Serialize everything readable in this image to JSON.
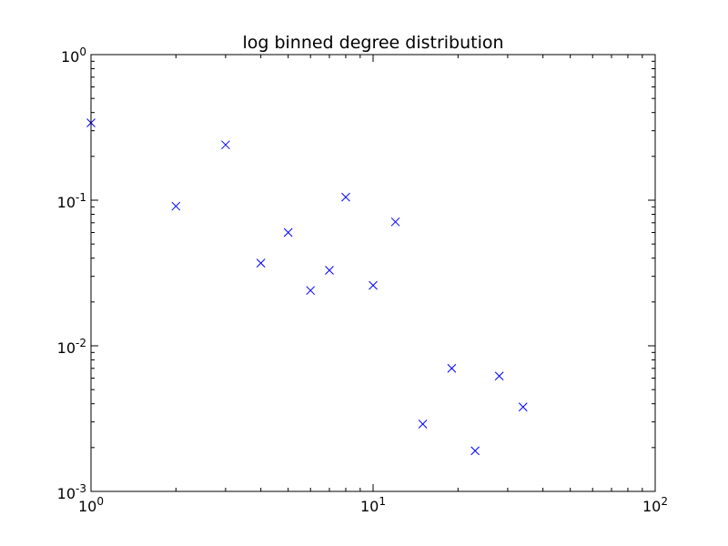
{
  "chart_data": {
    "type": "scatter",
    "title": "log binned degree distribution",
    "xlabel": "",
    "ylabel": "",
    "xscale": "log",
    "yscale": "log",
    "xlim": [
      1,
      100
    ],
    "ylim": [
      0.001,
      1
    ],
    "grid": false,
    "legend": "none",
    "marker": "x",
    "marker_color": "#0000ff",
    "x_ticks": [
      {
        "base": "10",
        "exp": "0"
      },
      {
        "base": "10",
        "exp": "1"
      },
      {
        "base": "10",
        "exp": "2"
      }
    ],
    "y_ticks": [
      {
        "base": "10",
        "exp": "-3"
      },
      {
        "base": "10",
        "exp": "-2"
      },
      {
        "base": "10",
        "exp": "-1"
      },
      {
        "base": "10",
        "exp": "0"
      }
    ],
    "series": [
      {
        "x": [
          1,
          2,
          3,
          4,
          5,
          6,
          7,
          8,
          10,
          12,
          15,
          19,
          23,
          28,
          34
        ],
        "y": [
          0.34,
          0.091,
          0.24,
          0.037,
          0.06,
          0.024,
          0.033,
          0.105,
          0.026,
          0.071,
          0.0029,
          0.007,
          0.0019,
          0.0062,
          0.0038
        ]
      }
    ]
  }
}
